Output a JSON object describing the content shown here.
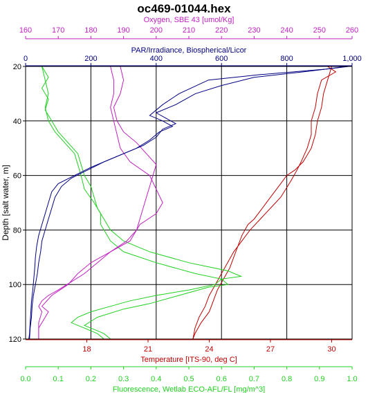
{
  "chart_data": {
    "type": "line",
    "title": "oc469-01044.hex",
    "y_axis": {
      "label": "Depth [salt water, m]",
      "range": [
        20,
        120
      ],
      "ticks": [
        20,
        40,
        60,
        80,
        100,
        120
      ],
      "inverted": true,
      "color": "#000000"
    },
    "x_axes": [
      {
        "id": "oxygen",
        "position": "top",
        "label": "Oxygen, SBE 43 [umol/Kg]",
        "color": "#c020c0",
        "range": [
          160,
          260
        ],
        "ticks": [
          160,
          170,
          180,
          190,
          200,
          210,
          220,
          230,
          240,
          250,
          260
        ],
        "tick_labels": [
          "160",
          "170",
          "180",
          "190",
          "200",
          "210",
          "220",
          "230",
          "240",
          "250",
          "260"
        ]
      },
      {
        "id": "par",
        "position": "top",
        "label": "PAR/Irradiance, Biospherical/Licor",
        "color": "#000080",
        "range": [
          0,
          1000
        ],
        "ticks": [
          0,
          200,
          400,
          600,
          800,
          1000
        ],
        "tick_labels": [
          "0",
          "200",
          "400",
          "600",
          "800",
          "1,000"
        ]
      },
      {
        "id": "temperature",
        "position": "bottom",
        "label": "Temperature [ITS-90, deg C]",
        "color": "#c00000",
        "range": [
          15,
          31
        ],
        "ticks": [
          18,
          21,
          24,
          27,
          30
        ],
        "tick_labels": [
          "18",
          "21",
          "24",
          "27",
          "30"
        ]
      },
      {
        "id": "fluorescence",
        "position": "bottom",
        "label": "Fluorescence, Wetlab ECO-AFL/FL [mg/m^3]",
        "color": "#20d020",
        "range": [
          0,
          1
        ],
        "ticks": [
          0,
          0.1,
          0.2,
          0.3,
          0.4,
          0.5,
          0.6,
          0.7,
          0.8,
          0.9,
          1.0
        ],
        "tick_labels": [
          "0.0",
          "0.1",
          "0.2",
          "0.3",
          "0.4",
          "0.5",
          "0.6",
          "0.7",
          "0.8",
          "0.9",
          "1.0"
        ]
      }
    ],
    "grid": true,
    "series": [
      {
        "axis": "temperature",
        "color": "#c00000",
        "points": [
          [
            29.8,
            20
          ],
          [
            30.2,
            22
          ],
          [
            29.5,
            25
          ],
          [
            29.3,
            30
          ],
          [
            29.2,
            35
          ],
          [
            29.0,
            40
          ],
          [
            29.0,
            45
          ],
          [
            28.8,
            50
          ],
          [
            28.5,
            55
          ],
          [
            28.3,
            58
          ],
          [
            28.0,
            62
          ],
          [
            27.5,
            68
          ],
          [
            27.0,
            72
          ],
          [
            26.5,
            76
          ],
          [
            26.0,
            80
          ],
          [
            25.6,
            84
          ],
          [
            25.2,
            88
          ],
          [
            24.9,
            92
          ],
          [
            24.6,
            96
          ],
          [
            24.3,
            100
          ],
          [
            24.0,
            104
          ],
          [
            23.8,
            108
          ],
          [
            23.5,
            112
          ],
          [
            23.3,
            116
          ],
          [
            23.2,
            120
          ]
        ]
      },
      {
        "axis": "temperature",
        "color": "#c00000",
        "points": [
          [
            30.0,
            20
          ],
          [
            29.8,
            25
          ],
          [
            29.6,
            30
          ],
          [
            29.5,
            35
          ],
          [
            29.3,
            40
          ],
          [
            29.2,
            45
          ],
          [
            29.0,
            50
          ],
          [
            28.6,
            55
          ],
          [
            28.2,
            58
          ],
          [
            27.8,
            60
          ],
          [
            27.4,
            64
          ],
          [
            27.0,
            68
          ],
          [
            26.6,
            72
          ],
          [
            26.2,
            76
          ],
          [
            25.9,
            78
          ],
          [
            25.6,
            82
          ],
          [
            25.4,
            86
          ],
          [
            25.2,
            90
          ],
          [
            25.0,
            94
          ],
          [
            24.7,
            98
          ],
          [
            24.4,
            102
          ],
          [
            24.2,
            106
          ],
          [
            24.0,
            110
          ],
          [
            23.6,
            114
          ],
          [
            23.3,
            118
          ],
          [
            23.2,
            120
          ]
        ]
      },
      {
        "axis": "fluorescence",
        "color": "#20d020",
        "points": [
          [
            0.05,
            20
          ],
          [
            0.07,
            24
          ],
          [
            0.05,
            28
          ],
          [
            0.07,
            32
          ],
          [
            0.06,
            36
          ],
          [
            0.08,
            40
          ],
          [
            0.1,
            44
          ],
          [
            0.13,
            48
          ],
          [
            0.16,
            52
          ],
          [
            0.17,
            56
          ],
          [
            0.18,
            60
          ],
          [
            0.2,
            64
          ],
          [
            0.21,
            68
          ],
          [
            0.22,
            72
          ],
          [
            0.24,
            76
          ],
          [
            0.26,
            80
          ],
          [
            0.3,
            84
          ],
          [
            0.38,
            88
          ],
          [
            0.5,
            92
          ],
          [
            0.62,
            95
          ],
          [
            0.66,
            97
          ],
          [
            0.6,
            98
          ],
          [
            0.58,
            100
          ],
          [
            0.5,
            102
          ],
          [
            0.4,
            104
          ],
          [
            0.32,
            106
          ],
          [
            0.26,
            108
          ],
          [
            0.2,
            110
          ],
          [
            0.16,
            112
          ],
          [
            0.14,
            114
          ],
          [
            0.18,
            116
          ],
          [
            0.22,
            118
          ],
          [
            0.24,
            120
          ]
        ]
      },
      {
        "axis": "fluorescence",
        "color": "#20d020",
        "points": [
          [
            0.05,
            20
          ],
          [
            0.06,
            25
          ],
          [
            0.07,
            30
          ],
          [
            0.06,
            35
          ],
          [
            0.07,
            40
          ],
          [
            0.09,
            44
          ],
          [
            0.12,
            48
          ],
          [
            0.15,
            52
          ],
          [
            0.16,
            56
          ],
          [
            0.17,
            60
          ],
          [
            0.18,
            65
          ],
          [
            0.21,
            70
          ],
          [
            0.23,
            74
          ],
          [
            0.23,
            78
          ],
          [
            0.24,
            80
          ],
          [
            0.26,
            84
          ],
          [
            0.3,
            88
          ],
          [
            0.4,
            92
          ],
          [
            0.52,
            96
          ],
          [
            0.6,
            98
          ],
          [
            0.62,
            100
          ],
          [
            0.56,
            101
          ],
          [
            0.5,
            103
          ],
          [
            0.44,
            105
          ],
          [
            0.38,
            107
          ],
          [
            0.3,
            109
          ],
          [
            0.22,
            112
          ],
          [
            0.18,
            115
          ],
          [
            0.24,
            118
          ],
          [
            0.26,
            120
          ]
        ]
      },
      {
        "axis": "oxygen",
        "color": "#c020c0",
        "points": [
          [
            186,
            20
          ],
          [
            187,
            25
          ],
          [
            187,
            30
          ],
          [
            186,
            35
          ],
          [
            187,
            40
          ],
          [
            188,
            45
          ],
          [
            189,
            50
          ],
          [
            192,
            55
          ],
          [
            198,
            60
          ],
          [
            200,
            65
          ],
          [
            202,
            70
          ],
          [
            200,
            74
          ],
          [
            195,
            78
          ],
          [
            194,
            80
          ],
          [
            191,
            84
          ],
          [
            186,
            88
          ],
          [
            180,
            92
          ],
          [
            176,
            96
          ],
          [
            173,
            100
          ],
          [
            168,
            104
          ],
          [
            165,
            108
          ],
          [
            167,
            110
          ],
          [
            166,
            112
          ],
          [
            164,
            116
          ],
          [
            164,
            120
          ]
        ]
      },
      {
        "axis": "oxygen",
        "color": "#c020c0",
        "points": [
          [
            189,
            20
          ],
          [
            190,
            25
          ],
          [
            189,
            30
          ],
          [
            187,
            35
          ],
          [
            188,
            40
          ],
          [
            190,
            44
          ],
          [
            194,
            48
          ],
          [
            197,
            52
          ],
          [
            200,
            56
          ],
          [
            199,
            60
          ],
          [
            198,
            64
          ],
          [
            197,
            68
          ],
          [
            196,
            72
          ],
          [
            195,
            76
          ],
          [
            194,
            80
          ],
          [
            192,
            84
          ],
          [
            186,
            88
          ],
          [
            182,
            92
          ],
          [
            178,
            96
          ],
          [
            174,
            99
          ],
          [
            170,
            102
          ],
          [
            167,
            104
          ],
          [
            165,
            106
          ],
          [
            164,
            108
          ],
          [
            165,
            110
          ],
          [
            164,
            114
          ],
          [
            164,
            118
          ],
          [
            164,
            120
          ]
        ]
      },
      {
        "axis": "par",
        "color": "#000080",
        "points": [
          [
            980,
            20
          ],
          [
            920,
            21
          ],
          [
            720,
            23
          ],
          [
            560,
            25
          ],
          [
            470,
            30
          ],
          [
            420,
            34
          ],
          [
            380,
            38
          ],
          [
            420,
            40
          ],
          [
            450,
            42
          ],
          [
            410,
            44
          ],
          [
            380,
            47
          ],
          [
            340,
            50
          ],
          [
            260,
            54
          ],
          [
            200,
            57
          ],
          [
            150,
            60
          ],
          [
            100,
            63
          ],
          [
            80,
            66
          ],
          [
            70,
            70
          ],
          [
            60,
            74
          ],
          [
            50,
            78
          ],
          [
            40,
            82
          ],
          [
            34,
            86
          ],
          [
            30,
            90
          ],
          [
            28,
            94
          ],
          [
            25,
            98
          ],
          [
            22,
            102
          ],
          [
            18,
            106
          ],
          [
            16,
            110
          ],
          [
            14,
            114
          ],
          [
            12,
            118
          ],
          [
            10,
            120
          ]
        ]
      },
      {
        "axis": "par",
        "color": "#000080",
        "points": [
          [
            990,
            20
          ],
          [
            850,
            22
          ],
          [
            700,
            24
          ],
          [
            600,
            27
          ],
          [
            520,
            30
          ],
          [
            460,
            34
          ],
          [
            400,
            37
          ],
          [
            430,
            39
          ],
          [
            460,
            41
          ],
          [
            420,
            43
          ],
          [
            400,
            46
          ],
          [
            360,
            49
          ],
          [
            300,
            52
          ],
          [
            240,
            55
          ],
          [
            190,
            58
          ],
          [
            140,
            61
          ],
          [
            110,
            64
          ],
          [
            90,
            68
          ],
          [
            80,
            72
          ],
          [
            70,
            76
          ],
          [
            60,
            80
          ],
          [
            50,
            84
          ],
          [
            46,
            88
          ],
          [
            40,
            92
          ],
          [
            36,
            96
          ],
          [
            30,
            100
          ],
          [
            24,
            104
          ],
          [
            20,
            108
          ],
          [
            18,
            112
          ],
          [
            14,
            116
          ],
          [
            12,
            120
          ]
        ]
      }
    ]
  }
}
